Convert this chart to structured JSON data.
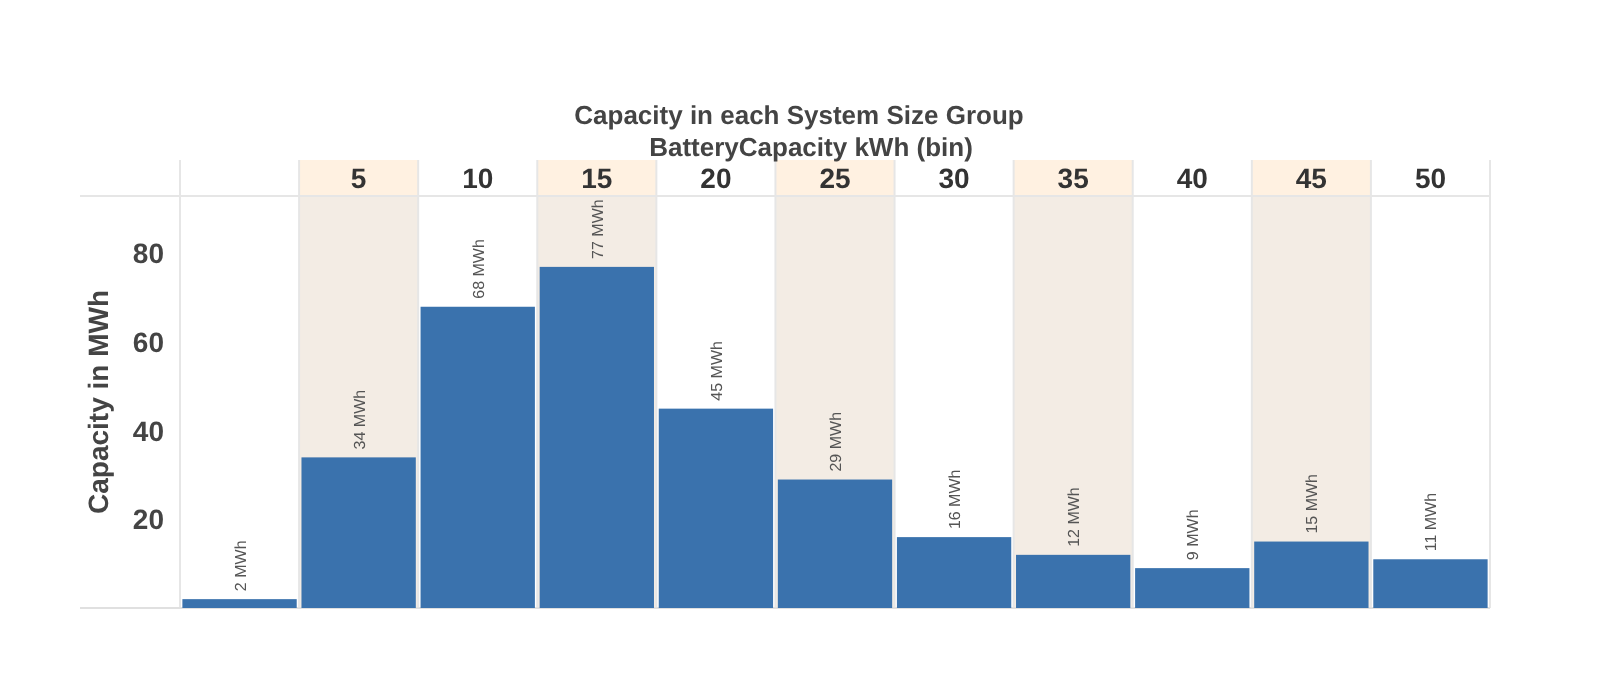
{
  "chart_data": {
    "type": "bar",
    "title": "Capacity in each System Size Group",
    "xlabel": "BatteryCapacity kWh (bin)",
    "ylabel": "Capacity in MWh",
    "categories": [
      null,
      "5",
      "10",
      "15",
      "20",
      "25",
      "30",
      "35",
      "40",
      "45",
      "50"
    ],
    "values": [
      2,
      34,
      68,
      77,
      45,
      29,
      16,
      12,
      9,
      15,
      11
    ],
    "value_labels": [
      "2 MWh",
      "34 MWh",
      "68 MWh",
      "77 MWh",
      "45 MWh",
      "29 MWh",
      "16 MWh",
      "12 MWh",
      "9 MWh",
      "15 MWh",
      "11 MWh"
    ],
    "color": "#3a72ad",
    "ylim": [
      0,
      93
    ],
    "yticks": [
      20,
      40,
      60,
      80
    ],
    "bands": [
      {
        "axis": "x",
        "from": "5",
        "to": "5",
        "color": "#f3ece4"
      },
      {
        "axis": "x",
        "from": "15",
        "to": "15",
        "color": "#f3ece4"
      },
      {
        "axis": "x",
        "from": "25",
        "to": "25",
        "color": "#f3ece4"
      },
      {
        "axis": "x",
        "from": "35",
        "to": "35",
        "color": "#f3ece4"
      },
      {
        "axis": "x",
        "from": "45",
        "to": "45",
        "color": "#f3ece4"
      }
    ]
  }
}
